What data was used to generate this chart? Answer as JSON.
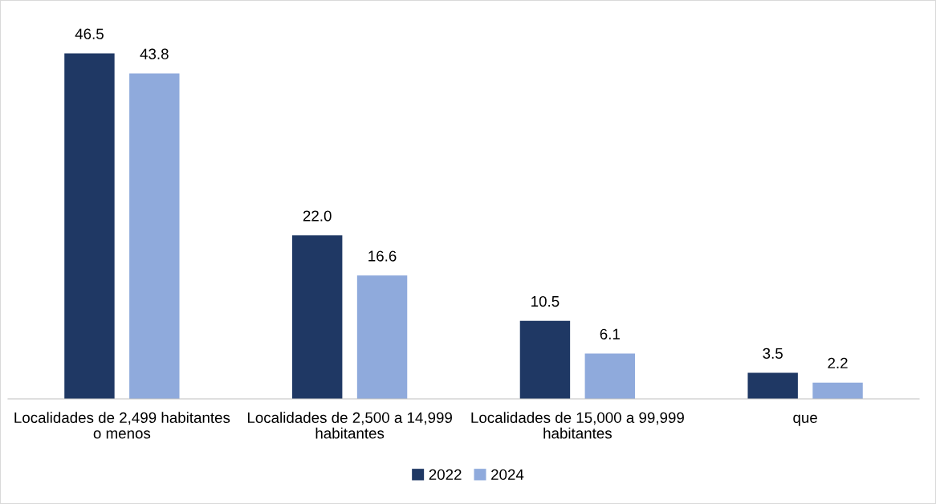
{
  "chart_data": {
    "type": "bar",
    "categories": [
      "Localidades de 2,499 habitantes o menos",
      "Localidades de 2,500 a 14,999 habitantes",
      "Localidades de 15,000 a 99,999 habitantes",
      "que"
    ],
    "series": [
      {
        "name": "2022",
        "color": "#1f3864",
        "values": [
          46.5,
          22.0,
          10.5,
          3.5
        ],
        "value_labels": [
          "46.5",
          "22.0",
          "10.5",
          "3.5"
        ]
      },
      {
        "name": "2024",
        "color": "#8faadc",
        "values": [
          43.8,
          16.6,
          6.1,
          2.2
        ],
        "value_labels": [
          "43.8",
          "16.6",
          "6.1",
          "2.2"
        ]
      }
    ],
    "grid": false,
    "legend": "bottom"
  }
}
